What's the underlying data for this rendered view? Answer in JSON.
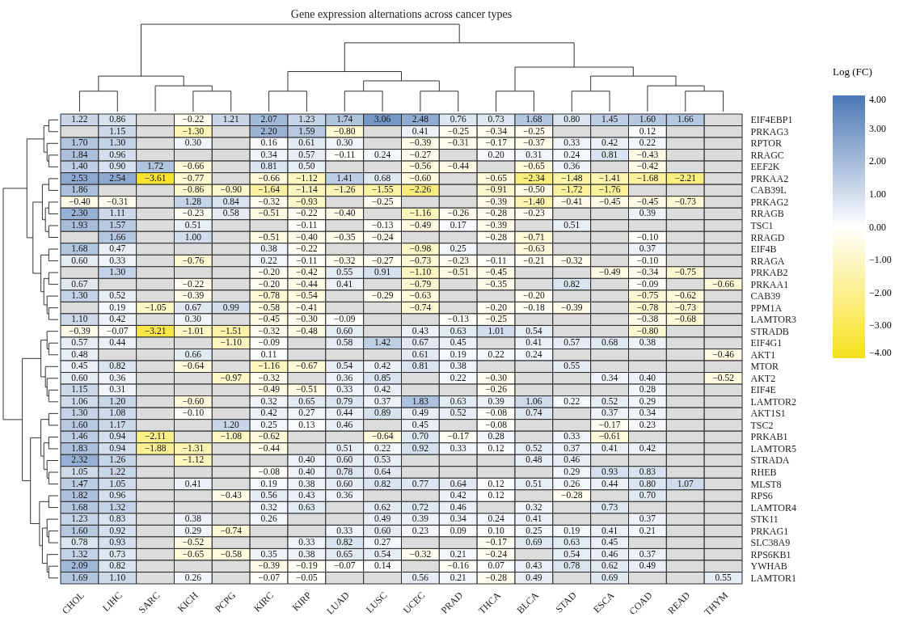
{
  "chart_data": {
    "type": "heatmap",
    "title": "Gene expression alternations across cancer types",
    "clabel": "Log (FC)",
    "categories": [
      "CHOL",
      "LIHC",
      "SARC",
      "KICH",
      "PCPG",
      "KIRC",
      "KIRP",
      "LUAD",
      "LUSC",
      "UCEC",
      "PRAD",
      "THCA",
      "BLCA",
      "STAD",
      "ESCA",
      "COAD",
      "READ",
      "THYM"
    ],
    "y_categories": [
      "EIF4EBP1",
      "PRKAG3",
      "RPTOR",
      "RRAGC",
      "EEF2K",
      "PRKAA2",
      "CAB39L",
      "PRKAG2",
      "RRAGB",
      "TSC1",
      "RRAGD",
      "EIF4B",
      "RRAGA",
      "PRKAB2",
      "PRKAA1",
      "CAB39",
      "PPM1A",
      "LAMTOR3",
      "STRADB",
      "EIF4G1",
      "AKT1",
      "MTOR",
      "AKT2",
      "EIF4E",
      "LAMTOR2",
      "AKT1S1",
      "TSC2",
      "PRKAB1",
      "LAMTOR5",
      "STRADA",
      "RHEB",
      "MLST8",
      "RPS6",
      "LAMTOR4",
      "STK11",
      "PRKAG1",
      "SLC38A9",
      "RPS6KB1",
      "YWHAB",
      "LAMTOR1"
    ],
    "cell_labels": [
      [
        "1.22",
        "0.86",
        null,
        "−0.22",
        "1.21",
        "2.07",
        "1.23",
        "1.74",
        "3.06",
        "2.48",
        "0.76",
        "0.73",
        "1.68",
        "0.80",
        "1.45",
        "1.60",
        "1.66",
        null
      ],
      [
        null,
        "1.15",
        null,
        "−1.30",
        null,
        "2.20",
        "1.59",
        "−0.80",
        null,
        "0.41",
        "−0.25",
        "−0.34",
        "−0.25",
        null,
        null,
        "0.12",
        null,
        null
      ],
      [
        "1.70",
        "1.30",
        null,
        "0.30",
        null,
        "0.16",
        "0.61",
        "0.30",
        null,
        "−0.39",
        "−0.31",
        "−0.17",
        "−0.37",
        "0.33",
        "0.42",
        "0.22",
        null,
        null
      ],
      [
        "1.84",
        "0.96",
        null,
        null,
        null,
        "0.34",
        "0.57",
        "−0.11",
        "0.24",
        "−0.27",
        null,
        "0.20",
        "0.31",
        "0.24",
        "0.81",
        "−0.43",
        null,
        null
      ],
      [
        "1.40",
        "0.90",
        "1.72",
        "−0.66",
        null,
        "0.81",
        "0.50",
        null,
        null,
        "−0.56",
        "−0.44",
        null,
        "−0.65",
        "0.36",
        null,
        "−0.42",
        null,
        null
      ],
      [
        "2.53",
        "2.54",
        "−3.61",
        "−0.77",
        null,
        "−0.66",
        "−1.12",
        "1.41",
        "0.68",
        "−0.60",
        null,
        "−0.65",
        "−2.34",
        "−1.48",
        "−1.41",
        "−1.68",
        "−2.21",
        null
      ],
      [
        "1.86",
        null,
        null,
        "−0.86",
        "−0.90",
        "−1.64",
        "−1.14",
        "−1.26",
        "−1.55",
        "−2.26",
        null,
        "−0.91",
        "−0.50",
        "−1.72",
        "−1.76",
        null,
        null,
        null
      ],
      [
        "−0.40",
        "−0.31",
        null,
        "1.28",
        "0.84",
        "−0.32",
        "−0.93",
        null,
        "−0.25",
        null,
        null,
        "−0.39",
        "−1.40",
        "−0.41",
        "−0.45",
        "−0.45",
        "−0.73",
        null
      ],
      [
        "2.30",
        "1.11",
        null,
        "−0.23",
        "0.58",
        "−0.51",
        "−0.22",
        "−0.40",
        null,
        "−1.16",
        "−0.26",
        "−0.28",
        "−0.23",
        null,
        null,
        "0.39",
        null,
        null
      ],
      [
        "1.93",
        "1.57",
        null,
        "0.51",
        null,
        null,
        "−0.11",
        null,
        "−0.13",
        "−0.49",
        "0.17",
        "−0.39",
        null,
        "0.51",
        null,
        null,
        null,
        null
      ],
      [
        null,
        "1.66",
        null,
        "1.00",
        null,
        "−0.51",
        "−0.40",
        "−0.35",
        "−0.24",
        null,
        null,
        "−0.28",
        "−0.71",
        null,
        null,
        "−0.10",
        null,
        null
      ],
      [
        "1.68",
        "0.47",
        null,
        null,
        null,
        "0.38",
        "−0.22",
        null,
        null,
        "−0.98",
        "0.25",
        null,
        "−0.63",
        null,
        null,
        "0.37",
        null,
        null
      ],
      [
        "0.60",
        "0.33",
        null,
        "−0.76",
        null,
        "0.22",
        "−0.11",
        "−0.32",
        "−0.27",
        "−0.73",
        "−0.23",
        "−0.11",
        "−0.21",
        "−0.32",
        null,
        "−0.10",
        null,
        null
      ],
      [
        null,
        "1.30",
        null,
        null,
        null,
        "−0.20",
        "−0.42",
        "0.55",
        "0.91",
        "−1.10",
        "−0.51",
        "−0.45",
        null,
        null,
        "−0.49",
        "−0.34",
        "−0.75",
        null
      ],
      [
        "0.67",
        null,
        null,
        "−0.22",
        null,
        "−0.20",
        "−0.44",
        "0.41",
        null,
        "−0.79",
        null,
        "−0.35",
        null,
        "0.82",
        null,
        "−0.09",
        null,
        "−0.66"
      ],
      [
        "1.30",
        "0.52",
        null,
        "−0.39",
        null,
        "−0.78",
        "−0.54",
        null,
        "−0.29",
        "−0.63",
        null,
        null,
        "−0.20",
        null,
        null,
        "−0.75",
        "−0.62",
        null
      ],
      [
        null,
        "0.19",
        "−1.05",
        "0.67",
        "0.99",
        "−0.58",
        "−0.41",
        null,
        null,
        "−0.74",
        null,
        "−0.20",
        "−0.18",
        "−0.39",
        null,
        "−0.78",
        "−0.73",
        null
      ],
      [
        "1.10",
        "0.42",
        null,
        "0.30",
        null,
        "−0.45",
        "−0.30",
        "−0.09",
        null,
        null,
        "−0.13",
        "−0.25",
        null,
        null,
        null,
        "−0.38",
        "−0.68",
        null
      ],
      [
        "−0.39",
        "−0.07",
        "−3.21",
        "−1.01",
        "−1.51",
        "−0.32",
        "−0.48",
        "0.60",
        null,
        "0.43",
        "0.63",
        "1.01",
        "0.54",
        null,
        null,
        "−0.80",
        null,
        null
      ],
      [
        "0.57",
        "0.44",
        null,
        null,
        "−1.10",
        "−0.09",
        null,
        "0.58",
        "1.42",
        "0.67",
        "0.45",
        null,
        "0.41",
        "0.57",
        "0.68",
        "0.38",
        null,
        null
      ],
      [
        "0.48",
        null,
        null,
        "0.66",
        null,
        "0.11",
        null,
        null,
        null,
        "0.61",
        "0.19",
        "0.22",
        "0.24",
        null,
        null,
        null,
        null,
        "−0.46"
      ],
      [
        "0.45",
        "0.82",
        null,
        "−0.64",
        null,
        "−1.16",
        "−0.67",
        "0.54",
        "0.42",
        "0.81",
        "0.38",
        null,
        null,
        "0.55",
        null,
        null,
        null,
        null
      ],
      [
        "0.60",
        "0.36",
        null,
        null,
        "−0.97",
        "−0.32",
        null,
        "0.36",
        "0.85",
        null,
        "0.22",
        "−0.30",
        null,
        null,
        "0.34",
        "0.40",
        null,
        "−0.52"
      ],
      [
        "1.15",
        "0.31",
        null,
        null,
        null,
        "−0.49",
        "−0.51",
        "0.33",
        "0.42",
        null,
        null,
        "−0.26",
        null,
        null,
        null,
        "0.28",
        null,
        null
      ],
      [
        "1.06",
        "1.20",
        null,
        "−0.60",
        null,
        "0.32",
        "0.65",
        "0.79",
        "0.37",
        "1.83",
        "0.63",
        "0.39",
        "1.06",
        "0.22",
        "0.52",
        "0.29",
        null,
        null
      ],
      [
        "1.30",
        "1.08",
        null,
        "−0.10",
        null,
        "0.42",
        "0.27",
        "0.44",
        "0.89",
        "0.49",
        "0.52",
        "−0.08",
        "0.74",
        null,
        "0.37",
        "0.34",
        null,
        null
      ],
      [
        "1.60",
        "1.17",
        null,
        null,
        "1.20",
        "0.25",
        "0.13",
        "0.46",
        null,
        "0.45",
        null,
        "−0.08",
        null,
        null,
        "−0.17",
        "0.23",
        null,
        null
      ],
      [
        "1.46",
        "0.94",
        "−2.11",
        null,
        "−1.08",
        "−0.62",
        null,
        null,
        "−0.64",
        "0.70",
        "−0.17",
        "0.28",
        null,
        "0.33",
        "−0.61",
        null,
        null,
        null
      ],
      [
        "1.83",
        "0.94",
        "−1.88",
        "−1.31",
        null,
        "−0.44",
        null,
        "0.51",
        "0.22",
        "0.92",
        "0.33",
        "0.12",
        "0.52",
        "0.37",
        "0.41",
        "0.42",
        null,
        null
      ],
      [
        "2.32",
        "1.26",
        null,
        "−1.12",
        null,
        null,
        "0.40",
        "0.60",
        "0.53",
        null,
        null,
        null,
        "0.48",
        "0.46",
        null,
        null,
        null,
        null
      ],
      [
        "1.05",
        "1.22",
        null,
        null,
        null,
        "−0.08",
        "0.40",
        "0.78",
        "0.64",
        null,
        null,
        null,
        null,
        "0.29",
        "0.93",
        "0.83",
        null,
        null
      ],
      [
        "1.47",
        "1.05",
        null,
        "0.41",
        null,
        "0.19",
        "0.38",
        "0.60",
        "0.82",
        "0.77",
        "0.64",
        "0.12",
        "0.51",
        "0.26",
        "0.44",
        "0.80",
        "1.07",
        null
      ],
      [
        "1.82",
        "0.96",
        null,
        null,
        "−0.43",
        "0.56",
        "0.43",
        "0.36",
        null,
        null,
        "0.42",
        "0.12",
        null,
        "−0.28",
        null,
        "0.70",
        null,
        null
      ],
      [
        "1.68",
        "1.32",
        null,
        null,
        null,
        "0.32",
        "0.63",
        null,
        "0.62",
        "0.72",
        "0.46",
        null,
        "0.32",
        null,
        "0.73",
        null,
        null,
        null
      ],
      [
        "1.23",
        "0.83",
        null,
        "0.38",
        null,
        "0.26",
        null,
        null,
        "0.49",
        "0.39",
        "0.34",
        "0.24",
        "0.41",
        null,
        null,
        "0.37",
        null,
        null
      ],
      [
        "1.60",
        "0.92",
        null,
        "0.29",
        "−0.74",
        null,
        null,
        "0.33",
        "0.60",
        "0.23",
        "0.09",
        "0.10",
        "0.25",
        "0.19",
        "0.41",
        "0.21",
        null,
        null
      ],
      [
        "0.78",
        "0.93",
        null,
        "−0.52",
        null,
        null,
        "0.33",
        "0.82",
        "0.27",
        null,
        null,
        "−0.17",
        "0.69",
        "0.63",
        "0.45",
        null,
        null,
        null
      ],
      [
        "1.32",
        "0.73",
        null,
        "−0.65",
        "−0.58",
        "0.35",
        "0.38",
        "0.65",
        "0.54",
        "−0.32",
        "0.21",
        "−0.24",
        null,
        "0.54",
        "0.46",
        "0.37",
        null,
        null
      ],
      [
        "2.09",
        "0.82",
        null,
        null,
        null,
        "−0.39",
        "−0.19",
        "−0.07",
        "0.14",
        null,
        "−0.16",
        "0.07",
        "0.43",
        "0.78",
        "0.62",
        "0.49",
        null,
        null
      ],
      [
        "1.69",
        "1.10",
        null,
        "0.26",
        null,
        "−0.07",
        "−0.05",
        null,
        null,
        "0.56",
        "0.21",
        "−0.28",
        "0.49",
        null,
        "0.69",
        null,
        null,
        "0.55"
      ]
    ],
    "clim": [
      -4,
      4
    ],
    "cticks": [
      {
        "value": 4,
        "label": "4.00"
      },
      {
        "value": 3,
        "label": "3.00"
      },
      {
        "value": 2,
        "label": "2.00"
      },
      {
        "value": 1,
        "label": "1.00"
      },
      {
        "value": 0,
        "label": "0.00"
      },
      {
        "value": -1,
        "label": "−1.00"
      },
      {
        "value": -2,
        "label": "−2.00"
      },
      {
        "value": -3,
        "label": "−3.00"
      },
      {
        "value": -4,
        "label": "−4.00"
      }
    ],
    "cells": [
      [
        1.22,
        0.86,
        null,
        -0.22,
        1.21,
        2.07,
        1.23,
        1.74,
        3.06,
        2.48,
        0.76,
        0.73,
        1.68,
        0.8,
        1.45,
        1.6,
        1.66,
        null
      ],
      [
        null,
        1.15,
        null,
        -1.3,
        null,
        2.2,
        1.59,
        -0.8,
        null,
        0.41,
        -0.25,
        -0.34,
        -0.25,
        null,
        null,
        0.12,
        null,
        null
      ],
      [
        1.7,
        1.3,
        null,
        0.3,
        null,
        0.16,
        0.61,
        0.3,
        null,
        -0.39,
        -0.31,
        -0.17,
        -0.37,
        0.33,
        0.42,
        0.22,
        null,
        null
      ],
      [
        1.84,
        0.96,
        null,
        null,
        null,
        0.34,
        0.57,
        -0.11,
        0.24,
        -0.27,
        null,
        0.2,
        0.31,
        0.24,
        0.81,
        -0.43,
        null,
        null
      ],
      [
        1.4,
        0.9,
        1.72,
        -0.66,
        null,
        0.81,
        0.5,
        null,
        null,
        -0.56,
        -0.44,
        null,
        -0.65,
        0.36,
        null,
        -0.42,
        null,
        null
      ],
      [
        2.53,
        2.54,
        -3.61,
        -0.77,
        null,
        -0.66,
        -1.12,
        1.41,
        0.68,
        -0.6,
        null,
        -0.65,
        -2.34,
        -1.48,
        -1.41,
        -1.68,
        -2.21,
        null
      ],
      [
        1.86,
        null,
        null,
        -0.86,
        -0.9,
        -1.64,
        -1.14,
        -1.26,
        -1.55,
        -2.26,
        null,
        -0.91,
        -0.5,
        -1.72,
        -1.76,
        null,
        null,
        null
      ],
      [
        -0.4,
        -0.31,
        null,
        1.28,
        0.84,
        -0.32,
        -0.93,
        null,
        -0.25,
        null,
        null,
        -0.39,
        -1.4,
        -0.41,
        -0.45,
        -0.45,
        -0.73,
        null
      ],
      [
        2.3,
        1.11,
        null,
        -0.23,
        0.58,
        -0.51,
        -0.22,
        -0.4,
        null,
        -1.16,
        -0.26,
        -0.28,
        -0.23,
        null,
        null,
        0.39,
        null,
        null
      ],
      [
        1.93,
        1.57,
        null,
        0.51,
        null,
        null,
        -0.11,
        null,
        -0.13,
        -0.49,
        0.17,
        -0.39,
        null,
        0.51,
        null,
        null,
        null,
        null
      ],
      [
        null,
        1.66,
        null,
        1.0,
        null,
        -0.51,
        -0.4,
        -0.35,
        -0.24,
        null,
        null,
        -0.28,
        -0.71,
        null,
        null,
        -0.1,
        null,
        null
      ],
      [
        1.68,
        0.47,
        null,
        null,
        null,
        0.38,
        -0.22,
        null,
        null,
        -0.98,
        0.25,
        null,
        -0.63,
        null,
        null,
        0.37,
        null,
        null
      ],
      [
        0.6,
        0.33,
        null,
        -0.76,
        null,
        0.22,
        -0.11,
        -0.32,
        -0.27,
        -0.73,
        -0.23,
        -0.11,
        -0.21,
        -0.32,
        null,
        -0.1,
        null,
        null
      ],
      [
        null,
        1.3,
        null,
        null,
        null,
        -0.2,
        -0.42,
        0.55,
        0.91,
        -1.1,
        -0.51,
        -0.45,
        null,
        null,
        -0.49,
        -0.34,
        -0.75,
        null
      ],
      [
        0.67,
        null,
        null,
        -0.22,
        null,
        -0.2,
        -0.44,
        0.41,
        null,
        -0.79,
        null,
        -0.35,
        null,
        0.82,
        null,
        -0.09,
        null,
        -0.66
      ],
      [
        1.3,
        0.52,
        null,
        -0.39,
        null,
        -0.78,
        -0.54,
        null,
        -0.29,
        -0.63,
        null,
        null,
        -0.2,
        null,
        null,
        -0.75,
        -0.62,
        null
      ],
      [
        null,
        0.19,
        -1.05,
        0.67,
        0.99,
        -0.58,
        -0.41,
        null,
        null,
        -0.74,
        null,
        -0.2,
        -0.18,
        -0.39,
        null,
        -0.78,
        -0.73,
        null
      ],
      [
        1.1,
        0.42,
        null,
        0.3,
        null,
        -0.45,
        -0.3,
        -0.09,
        null,
        null,
        -0.13,
        -0.25,
        null,
        null,
        null,
        -0.38,
        -0.68,
        null
      ],
      [
        -0.39,
        -0.07,
        -3.21,
        -1.01,
        -1.51,
        -0.32,
        -0.48,
        0.6,
        null,
        0.43,
        0.63,
        1.01,
        0.54,
        null,
        null,
        -0.8,
        null,
        null
      ],
      [
        0.57,
        0.44,
        null,
        null,
        -1.1,
        -0.09,
        null,
        0.58,
        1.42,
        0.67,
        0.45,
        null,
        0.41,
        0.57,
        0.68,
        0.38,
        null,
        null
      ],
      [
        0.48,
        null,
        null,
        0.66,
        null,
        0.11,
        null,
        null,
        null,
        0.61,
        0.19,
        0.22,
        0.24,
        null,
        null,
        null,
        null,
        -0.46
      ],
      [
        0.45,
        0.82,
        null,
        -0.64,
        null,
        -1.16,
        -0.67,
        0.54,
        0.42,
        0.81,
        0.38,
        null,
        null,
        0.55,
        null,
        null,
        null,
        null
      ],
      [
        0.6,
        0.36,
        null,
        null,
        -0.97,
        -0.32,
        null,
        0.36,
        0.85,
        null,
        0.22,
        -0.3,
        null,
        null,
        0.34,
        0.4,
        null,
        -0.52
      ],
      [
        1.15,
        0.31,
        null,
        null,
        null,
        -0.49,
        -0.51,
        0.33,
        0.42,
        null,
        null,
        -0.26,
        null,
        null,
        null,
        0.28,
        null,
        null
      ],
      [
        1.06,
        1.2,
        null,
        -0.6,
        null,
        0.32,
        0.65,
        0.79,
        0.37,
        1.83,
        0.63,
        0.39,
        1.06,
        0.22,
        0.52,
        0.29,
        null,
        null
      ],
      [
        1.3,
        1.08,
        null,
        -0.1,
        null,
        0.42,
        0.27,
        0.44,
        0.89,
        0.49,
        0.52,
        -0.08,
        0.74,
        null,
        0.37,
        0.34,
        null,
        null
      ],
      [
        1.6,
        1.17,
        null,
        null,
        1.2,
        0.25,
        0.13,
        0.46,
        null,
        0.45,
        null,
        -0.08,
        null,
        null,
        -0.17,
        0.23,
        null,
        null
      ],
      [
        1.46,
        0.94,
        -2.11,
        null,
        -1.08,
        -0.62,
        null,
        null,
        -0.64,
        0.7,
        -0.17,
        0.28,
        null,
        0.33,
        -0.61,
        null,
        null,
        null
      ],
      [
        1.83,
        0.94,
        -1.88,
        -1.31,
        null,
        -0.44,
        null,
        0.51,
        0.22,
        0.92,
        0.33,
        0.12,
        0.52,
        0.37,
        0.41,
        0.42,
        null,
        null
      ],
      [
        2.32,
        1.26,
        null,
        -1.12,
        null,
        null,
        0.4,
        0.6,
        0.53,
        null,
        null,
        null,
        0.48,
        0.46,
        null,
        null,
        null,
        null
      ],
      [
        1.05,
        1.22,
        null,
        null,
        null,
        -0.08,
        0.4,
        0.78,
        0.64,
        null,
        null,
        null,
        null,
        0.29,
        0.93,
        0.83,
        null,
        null
      ],
      [
        1.47,
        1.05,
        null,
        0.41,
        null,
        0.19,
        0.38,
        0.6,
        0.82,
        0.77,
        0.64,
        0.12,
        0.51,
        0.26,
        0.44,
        0.8,
        1.07,
        null
      ],
      [
        1.82,
        0.96,
        null,
        null,
        -0.43,
        0.56,
        0.43,
        0.36,
        null,
        null,
        0.42,
        0.12,
        null,
        -0.28,
        null,
        0.7,
        null,
        null
      ],
      [
        1.68,
        1.32,
        null,
        null,
        null,
        0.32,
        0.63,
        null,
        0.62,
        0.72,
        0.46,
        null,
        0.32,
        null,
        0.73,
        null,
        null,
        null
      ],
      [
        1.23,
        0.83,
        null,
        0.38,
        null,
        0.26,
        null,
        null,
        0.49,
        0.39,
        0.34,
        0.24,
        0.41,
        null,
        null,
        0.37,
        null,
        null
      ],
      [
        1.6,
        0.92,
        null,
        0.29,
        -0.74,
        null,
        null,
        0.33,
        0.6,
        0.23,
        0.09,
        0.1,
        0.25,
        0.19,
        0.41,
        0.21,
        null,
        null
      ],
      [
        0.78,
        0.93,
        null,
        -0.52,
        null,
        null,
        0.33,
        0.82,
        0.27,
        null,
        null,
        -0.17,
        0.69,
        0.63,
        0.45,
        null,
        null,
        null
      ],
      [
        1.32,
        0.73,
        null,
        -0.65,
        -0.58,
        0.35,
        0.38,
        0.65,
        0.54,
        -0.32,
        0.21,
        -0.24,
        null,
        0.54,
        0.46,
        0.37,
        null,
        null
      ],
      [
        2.09,
        0.82,
        null,
        null,
        null,
        -0.39,
        -0.19,
        -0.07,
        0.14,
        null,
        -0.16,
        0.07,
        0.43,
        0.78,
        0.62,
        0.49,
        null,
        null
      ],
      [
        1.69,
        1.1,
        null,
        0.26,
        null,
        -0.07,
        -0.05,
        null,
        null,
        0.56,
        0.21,
        -0.28,
        0.49,
        null,
        0.69,
        null,
        null,
        0.55
      ]
    ]
  }
}
